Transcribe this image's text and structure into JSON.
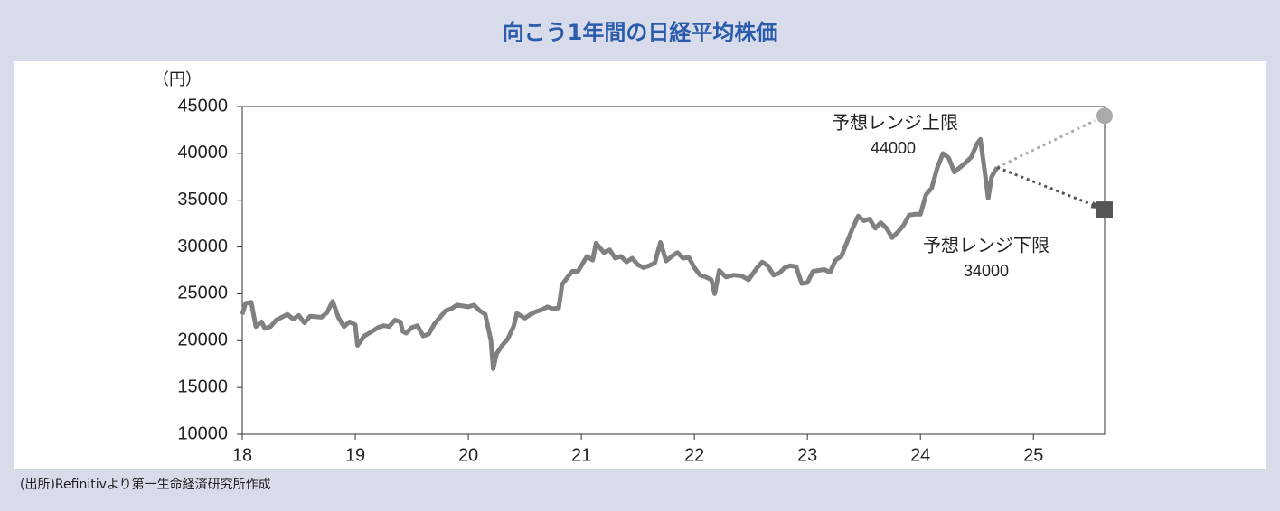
{
  "chart_data": {
    "type": "line",
    "title": "向こう1年間の日経平均株価",
    "y_unit": "（円）",
    "source": "(出所)Refinitivより第一生命経済研究所作成",
    "xlim": [
      18,
      25.63
    ],
    "xticks": [
      18,
      19,
      20,
      21,
      22,
      23,
      24,
      25
    ],
    "ylim": [
      10000,
      45000
    ],
    "yticks": [
      10000,
      15000,
      20000,
      25000,
      30000,
      35000,
      40000,
      45000
    ],
    "series": [
      {
        "name": "日経平均株価",
        "color": "#808080",
        "x": [
          18.0,
          18.03,
          18.08,
          18.12,
          18.17,
          18.2,
          18.25,
          18.3,
          18.4,
          18.45,
          18.5,
          18.55,
          18.6,
          18.7,
          18.75,
          18.8,
          18.85,
          18.9,
          18.95,
          19.0,
          19.02,
          19.08,
          19.15,
          19.2,
          19.25,
          19.3,
          19.35,
          19.4,
          19.42,
          19.45,
          19.5,
          19.55,
          19.6,
          19.65,
          19.7,
          19.75,
          19.8,
          19.85,
          19.9,
          19.95,
          20.0,
          20.05,
          20.1,
          20.15,
          20.2,
          20.22,
          20.25,
          20.3,
          20.35,
          20.4,
          20.43,
          20.5,
          20.55,
          20.6,
          20.65,
          20.7,
          20.75,
          20.8,
          20.83,
          20.88,
          20.92,
          20.97,
          21.0,
          21.05,
          21.1,
          21.13,
          21.2,
          21.25,
          21.3,
          21.35,
          21.4,
          21.45,
          21.5,
          21.55,
          21.6,
          21.65,
          21.7,
          21.75,
          21.8,
          21.85,
          21.9,
          21.95,
          22.0,
          22.05,
          22.1,
          22.15,
          22.18,
          22.22,
          22.28,
          22.35,
          22.42,
          22.48,
          22.55,
          22.6,
          22.65,
          22.7,
          22.75,
          22.8,
          22.85,
          22.9,
          22.95,
          23.0,
          23.05,
          23.1,
          23.15,
          23.2,
          23.25,
          23.3,
          23.35,
          23.4,
          23.45,
          23.5,
          23.55,
          23.6,
          23.65,
          23.7,
          23.75,
          23.8,
          23.85,
          23.9,
          23.95,
          24.0,
          24.05,
          24.1,
          24.15,
          24.2,
          24.25,
          24.3,
          24.35,
          24.4,
          24.45,
          24.5,
          24.53,
          24.57,
          24.6,
          24.63,
          24.68
        ],
        "values": [
          22800,
          24000,
          24100,
          21500,
          22000,
          21300,
          21500,
          22200,
          22800,
          22300,
          22700,
          21900,
          22600,
          22500,
          23000,
          24200,
          22500,
          21500,
          22000,
          21700,
          19500,
          20500,
          21000,
          21400,
          21600,
          21500,
          22200,
          22000,
          21000,
          20800,
          21400,
          21600,
          20500,
          20700,
          21800,
          22500,
          23200,
          23400,
          23800,
          23700,
          23600,
          23800,
          23200,
          22800,
          20000,
          17000,
          18600,
          19500,
          20200,
          21500,
          22900,
          22400,
          22800,
          23100,
          23300,
          23600,
          23400,
          23500,
          26000,
          26800,
          27400,
          27400,
          28000,
          29000,
          28600,
          30400,
          29400,
          29700,
          28800,
          29000,
          28400,
          28800,
          28100,
          27800,
          28000,
          28300,
          30500,
          28500,
          29000,
          29400,
          28800,
          28900,
          27800,
          27000,
          26800,
          26500,
          25000,
          27500,
          26800,
          27000,
          26900,
          26500,
          27700,
          28400,
          28000,
          27000,
          27200,
          27800,
          28000,
          27900,
          26100,
          26200,
          27400,
          27500,
          27600,
          27300,
          28600,
          29000,
          30500,
          32000,
          33300,
          32800,
          33000,
          32000,
          32600,
          32000,
          31000,
          31600,
          32300,
          33400,
          33500,
          33500,
          35600,
          36300,
          38500,
          40000,
          39500,
          38000,
          38500,
          39000,
          39600,
          41000,
          41500,
          38000,
          35200,
          37500,
          38500
        ]
      }
    ],
    "forecast": {
      "x": 25.63,
      "upper": {
        "label": "予想レンジ上限",
        "value": 44000,
        "color": "#aaaaaa"
      },
      "lower": {
        "label": "予想レンジ下限",
        "value": 34000,
        "color": "#555555"
      }
    }
  }
}
